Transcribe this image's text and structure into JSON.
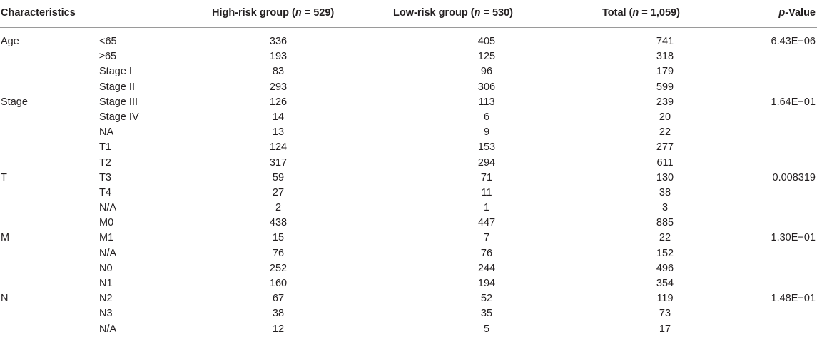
{
  "header": {
    "characteristics": "Characteristics",
    "high_prefix": "High-risk group (",
    "high_n": "n",
    "high_suffix": " = 529)",
    "low_prefix": "Low-risk group (",
    "low_n": "n",
    "low_suffix": " = 530)",
    "total_prefix": "Total (",
    "total_n": "n",
    "total_suffix": " = 1,059)",
    "p_italic": "p",
    "p_suffix": "-Value"
  },
  "rows": [
    {
      "cat": "Age",
      "sub": "<65",
      "high": "336",
      "low": "405",
      "total": "741",
      "p": "6.43E−06"
    },
    {
      "cat": "",
      "sub": "≥65",
      "high": "193",
      "low": "125",
      "total": "318",
      "p": ""
    },
    {
      "cat": "",
      "sub": "Stage I",
      "high": "83",
      "low": "96",
      "total": "179",
      "p": ""
    },
    {
      "cat": "",
      "sub": "Stage II",
      "high": "293",
      "low": "306",
      "total": "599",
      "p": ""
    },
    {
      "cat": "Stage",
      "sub": "Stage III",
      "high": "126",
      "low": "113",
      "total": "239",
      "p": "1.64E−01"
    },
    {
      "cat": "",
      "sub": "Stage IV",
      "high": "14",
      "low": "6",
      "total": "20",
      "p": ""
    },
    {
      "cat": "",
      "sub": "NA",
      "high": "13",
      "low": "9",
      "total": "22",
      "p": ""
    },
    {
      "cat": "",
      "sub": "T1",
      "high": "124",
      "low": "153",
      "total": "277",
      "p": ""
    },
    {
      "cat": "",
      "sub": "T2",
      "high": "317",
      "low": "294",
      "total": "611",
      "p": ""
    },
    {
      "cat": "T",
      "sub": "T3",
      "high": "59",
      "low": "71",
      "total": "130",
      "p": "0.008319"
    },
    {
      "cat": "",
      "sub": "T4",
      "high": "27",
      "low": "11",
      "total": "38",
      "p": ""
    },
    {
      "cat": "",
      "sub": "N/A",
      "high": "2",
      "low": "1",
      "total": "3",
      "p": ""
    },
    {
      "cat": "",
      "sub": "M0",
      "high": "438",
      "low": "447",
      "total": "885",
      "p": ""
    },
    {
      "cat": "M",
      "sub": "M1",
      "high": "15",
      "low": "7",
      "total": "22",
      "p": "1.30E−01"
    },
    {
      "cat": "",
      "sub": "N/A",
      "high": "76",
      "low": "76",
      "total": "152",
      "p": ""
    },
    {
      "cat": "",
      "sub": "N0",
      "high": "252",
      "low": "244",
      "total": "496",
      "p": ""
    },
    {
      "cat": "",
      "sub": "N1",
      "high": "160",
      "low": "194",
      "total": "354",
      "p": ""
    },
    {
      "cat": "N",
      "sub": "N2",
      "high": "67",
      "low": "52",
      "total": "119",
      "p": "1.48E−01"
    },
    {
      "cat": "",
      "sub": "N3",
      "high": "38",
      "low": "35",
      "total": "73",
      "p": ""
    },
    {
      "cat": "",
      "sub": "N/A",
      "high": "12",
      "low": "5",
      "total": "17",
      "p": ""
    }
  ]
}
